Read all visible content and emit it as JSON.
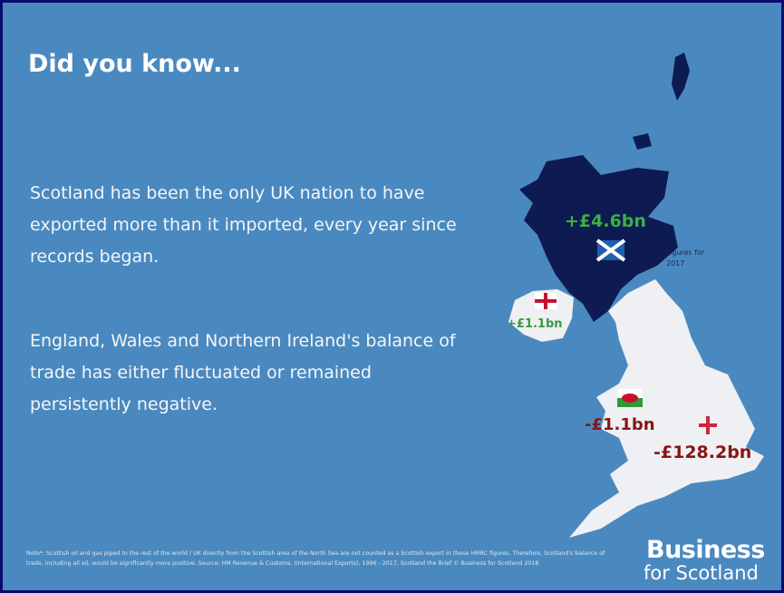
{
  "header": {
    "title": "Did you know..."
  },
  "paragraphs": [
    "Scotland has been the only UK nation to have exported more than it imported, every year since records began.",
    "England, Wales and Northern Ireland's balance of trade has either fluctuated or remained persistently negative."
  ],
  "map": {
    "scotland": "+£4.6bn",
    "northern_ireland": "+£1.1bn",
    "wales": "-£1.1bn",
    "england": "-£128.2bn",
    "note": "Figures for 2017"
  },
  "footer": {
    "note": "Note*: Scottish oil and gas piped to the rest of the world / UK directly from the Scottish area of the North Sea are not counted as a Scottish export in these HMRC figures. Therefore, Scotland's balance of trade, including all oil, would be significantly more positive. Source: HM Revenue & Customs, (International Exports), 1996 - 2017, Scotland the Brief © Business for Scotland 2018",
    "logo_line1": "Business",
    "logo_line2": "for Scotland"
  }
}
